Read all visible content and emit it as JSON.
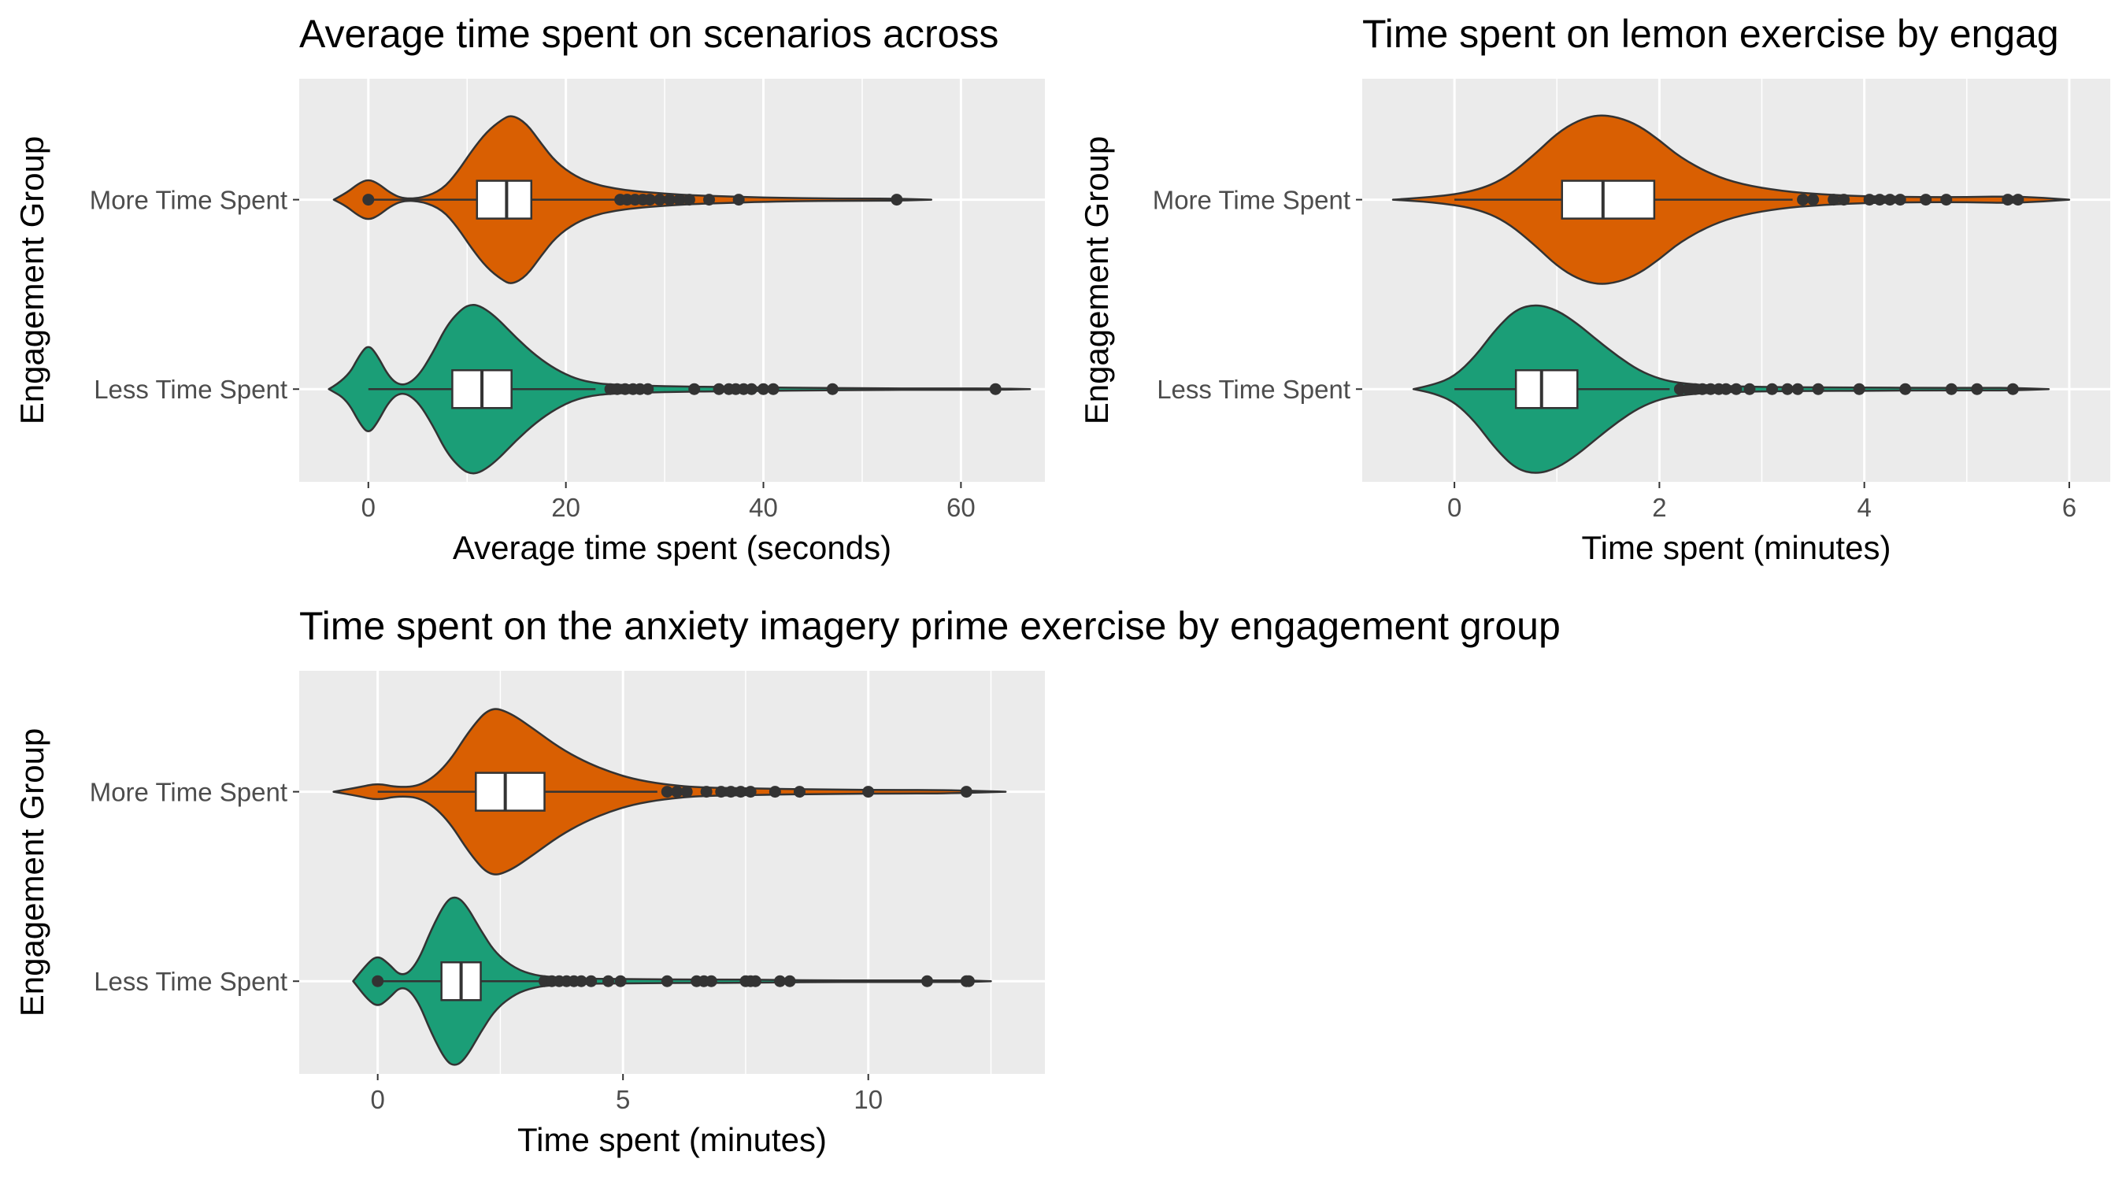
{
  "chart_data": [
    {
      "type": "violin",
      "title": "Average time spent on scenarios across",
      "xlabel": "Average time spent (seconds)",
      "ylabel": "Engagement Group",
      "xlim": [
        -7,
        68.5
      ],
      "xticks": [
        0,
        20,
        40,
        60
      ],
      "grid": true,
      "legend": "none",
      "categories": [
        "More Time Spent",
        "Less Time Spent"
      ],
      "series": [
        {
          "group": "More Time Spent",
          "color": "#D95F02",
          "density": {
            "x": [
              -3.5,
              -2.2,
              -1.0,
              0,
              1.0,
              2.2,
              3.5,
              5.5,
              7.5,
              9,
              10.5,
              12,
              13.5,
              14.5,
              16,
              17.5,
              19,
              21,
              23,
              25,
              27,
              30,
              33,
              36,
              40,
              45,
              50,
              53.5,
              57
            ],
            "w": [
              0,
              0.08,
              0.19,
              0.24,
              0.19,
              0.08,
              0.01,
              0.02,
              0.12,
              0.32,
              0.58,
              0.8,
              0.94,
              1.0,
              0.9,
              0.66,
              0.44,
              0.27,
              0.18,
              0.13,
              0.1,
              0.07,
              0.05,
              0.04,
              0.025,
              0.015,
              0.012,
              0.012,
              0
            ]
          },
          "box": {
            "q1": 11,
            "median": 14,
            "q3": 16.5,
            "whisker_low": 0,
            "whisker_high": 25
          },
          "outliers": [
            0,
            25.5,
            26.2,
            27,
            27.8,
            28.5,
            29.5,
            30.5,
            31.5,
            32.5,
            34.5,
            37.5,
            53.5
          ]
        },
        {
          "group": "Less Time Spent",
          "color": "#1B9E77",
          "density": {
            "x": [
              -4,
              -2.2,
              -0.8,
              0,
              0.8,
              2.2,
              3.5,
              5,
              6.5,
              8,
              9.5,
              10.5,
              11.5,
              13,
              15,
              17,
              19,
              21,
              23,
              25,
              28,
              32,
              36,
              40,
              45,
              50,
              55,
              60,
              63,
              67
            ],
            "w": [
              0,
              0.12,
              0.42,
              0.52,
              0.42,
              0.12,
              0.03,
              0.14,
              0.42,
              0.76,
              0.95,
              1.0,
              0.97,
              0.84,
              0.6,
              0.39,
              0.23,
              0.12,
              0.07,
              0.05,
              0.04,
              0.03,
              0.025,
              0.02,
              0.015,
              0.01,
              0.008,
              0.008,
              0.008,
              0
            ]
          },
          "box": {
            "q1": 8.5,
            "median": 11.5,
            "q3": 14.5,
            "whisker_low": 0,
            "whisker_high": 23
          },
          "outliers": [
            24.5,
            25.2,
            26,
            26.8,
            27.5,
            28.3,
            33,
            35.5,
            36.5,
            37.2,
            38,
            38.8,
            40,
            41,
            47,
            63.5
          ]
        }
      ]
    },
    {
      "type": "violin",
      "title": "Time spent on lemon exercise by engag",
      "xlabel": "Time spent (minutes)",
      "ylabel": "Engagement Group",
      "xlim": [
        -0.9,
        6.4
      ],
      "xticks": [
        0,
        2,
        4,
        6
      ],
      "grid": true,
      "legend": "none",
      "categories": [
        "More Time Spent",
        "Less Time Spent"
      ],
      "series": [
        {
          "group": "More Time Spent",
          "color": "#D95F02",
          "density": {
            "x": [
              -0.6,
              -0.2,
              0.2,
              0.5,
              0.8,
              1.0,
              1.2,
              1.4,
              1.6,
              1.8,
              2.0,
              2.2,
              2.5,
              2.8,
              3.2,
              3.6,
              4.0,
              4.5,
              5.0,
              5.5,
              6.0
            ],
            "w": [
              0,
              0.03,
              0.1,
              0.25,
              0.55,
              0.78,
              0.93,
              1.0,
              0.97,
              0.87,
              0.7,
              0.5,
              0.3,
              0.18,
              0.1,
              0.06,
              0.04,
              0.03,
              0.03,
              0.04,
              0
            ]
          },
          "box": {
            "q1": 1.05,
            "median": 1.45,
            "q3": 1.95,
            "whisker_low": 0,
            "whisker_high": 3.3
          },
          "outliers": [
            3.4,
            3.5,
            3.7,
            3.8,
            4.05,
            4.15,
            4.25,
            4.35,
            4.6,
            4.8,
            5.4,
            5.5
          ]
        },
        {
          "group": "Less Time Spent",
          "color": "#1B9E77",
          "density": {
            "x": [
              -0.4,
              -0.2,
              0,
              0.2,
              0.4,
              0.6,
              0.8,
              1.0,
              1.2,
              1.4,
              1.6,
              1.8,
              2.0,
              2.2,
              2.5,
              3.0,
              3.5,
              4.0,
              4.5,
              5.0,
              5.4,
              5.8
            ],
            "w": [
              0,
              0.05,
              0.15,
              0.38,
              0.7,
              0.94,
              1.0,
              0.93,
              0.77,
              0.57,
              0.38,
              0.22,
              0.12,
              0.07,
              0.04,
              0.025,
              0.02,
              0.02,
              0.015,
              0.015,
              0.015,
              0
            ]
          },
          "box": {
            "q1": 0.6,
            "median": 0.85,
            "q3": 1.2,
            "whisker_low": 0,
            "whisker_high": 2.1
          },
          "outliers": [
            2.2,
            2.28,
            2.35,
            2.42,
            2.5,
            2.58,
            2.65,
            2.75,
            2.88,
            3.1,
            3.25,
            3.35,
            3.55,
            3.95,
            4.4,
            4.85,
            5.1,
            5.45
          ]
        }
      ]
    },
    {
      "type": "violin",
      "title": "Time spent on the anxiety imagery prime exercise by engagement group",
      "xlabel": "Time spent (minutes)",
      "ylabel": "Engagement Group",
      "xlim": [
        -1.6,
        13.6
      ],
      "xticks": [
        0,
        5,
        10
      ],
      "grid": true,
      "legend": "none",
      "categories": [
        "More Time Spent",
        "Less Time Spent"
      ],
      "series": [
        {
          "group": "More Time Spent",
          "color": "#D95F02",
          "density": {
            "x": [
              -0.9,
              -0.4,
              0,
              0.4,
              0.9,
              1.4,
              1.9,
              2.3,
              2.7,
              3.2,
              3.7,
              4.2,
              4.7,
              5.2,
              5.8,
              6.5,
              7.5,
              8.5,
              9.5,
              10.5,
              11.5,
              12.8
            ],
            "w": [
              0,
              0.05,
              0.1,
              0.05,
              0.07,
              0.3,
              0.75,
              1.0,
              0.93,
              0.73,
              0.52,
              0.36,
              0.24,
              0.15,
              0.09,
              0.05,
              0.04,
              0.03,
              0.025,
              0.02,
              0.02,
              0
            ]
          },
          "box": {
            "q1": 2.0,
            "median": 2.6,
            "q3": 3.4,
            "whisker_low": 0,
            "whisker_high": 5.7
          },
          "outliers": [
            5.9,
            6.1,
            6.3,
            6.7,
            7.0,
            7.2,
            7.4,
            7.6,
            8.1,
            8.6,
            10.0,
            12.0
          ]
        },
        {
          "group": "Less Time Spent",
          "color": "#1B9E77",
          "density": {
            "x": [
              -0.5,
              -0.2,
              0,
              0.2,
              0.5,
              0.8,
              1.1,
              1.4,
              1.6,
              1.8,
              2.1,
              2.4,
              2.8,
              3.2,
              3.6,
              4.2,
              5,
              6,
              7,
              8,
              9,
              10,
              11,
              11.5,
              12,
              12.5
            ],
            "w": [
              0,
              0.22,
              0.3,
              0.22,
              0.04,
              0.2,
              0.62,
              0.95,
              1.0,
              0.9,
              0.6,
              0.33,
              0.15,
              0.07,
              0.045,
              0.03,
              0.025,
              0.02,
              0.02,
              0.015,
              0.01,
              0.01,
              0.01,
              0.01,
              0.01,
              0
            ]
          },
          "box": {
            "q1": 1.3,
            "median": 1.7,
            "q3": 2.1,
            "whisker_low": 0,
            "whisker_high": 3.3
          },
          "outliers": [
            0,
            3.4,
            3.55,
            3.7,
            3.85,
            4.0,
            4.15,
            4.35,
            4.7,
            4.95,
            5.9,
            6.5,
            6.65,
            6.8,
            7.5,
            7.6,
            7.7,
            8.2,
            8.4,
            11.2,
            12.0,
            12.05
          ]
        }
      ]
    }
  ]
}
